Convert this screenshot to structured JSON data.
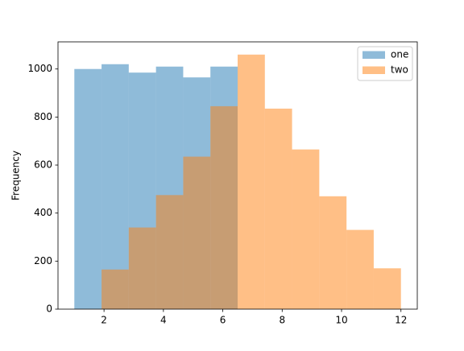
{
  "chart_data": {
    "type": "histogram",
    "ylabel": "Frequency",
    "bins": [
      1,
      1.917,
      2.833,
      3.75,
      4.667,
      5.583,
      6.5,
      7.417,
      8.333,
      9.25,
      10.167,
      11.083,
      12
    ],
    "series": [
      {
        "name": "one",
        "color": "#1f77b4",
        "values": [
          1000,
          1020,
          985,
          1010,
          965,
          1010,
          0,
          0,
          0,
          0,
          0,
          0
        ]
      },
      {
        "name": "two",
        "color": "#ff7f0e",
        "values": [
          0,
          165,
          340,
          475,
          635,
          845,
          1060,
          835,
          665,
          470,
          330,
          170
        ]
      }
    ],
    "alpha": 0.5,
    "xlim": [
      0.45,
      12.55
    ],
    "xticks": [
      2,
      4,
      6,
      8,
      10,
      12
    ],
    "ylim": [
      0,
      1113
    ],
    "yticks": [
      0,
      200,
      400,
      600,
      800,
      1000
    ],
    "legend": "upper right"
  }
}
